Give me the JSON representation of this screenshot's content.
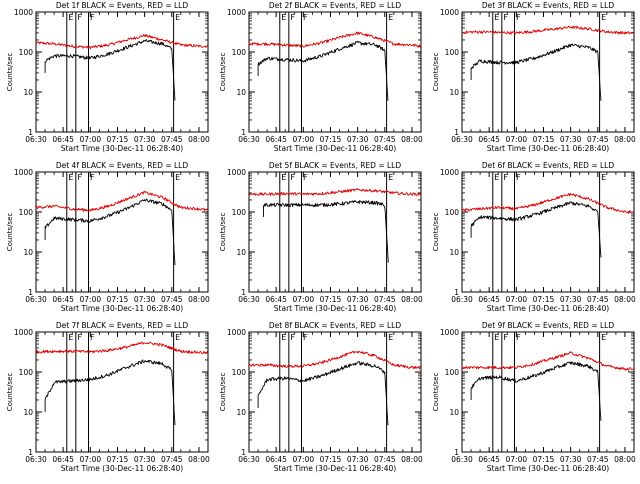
{
  "figure": {
    "rows": 3,
    "cols": 3,
    "colors": {
      "background": "#ffffff",
      "events": "#000000",
      "lld": "#e00000",
      "axes": "#000000"
    }
  },
  "chart_data": [
    {
      "type": "line",
      "title": "Det 1f BLACK = Events, RED = LLD",
      "xlabel": "Start Time (30-Dec-11 06:28:40)",
      "ylabel": "Counts/sec",
      "yscale": "log",
      "ylim": [
        1,
        1000
      ],
      "xlim": [
        "06:30",
        "08:05"
      ],
      "x_ticks": [
        "06:30",
        "06:45",
        "07:00",
        "07:15",
        "07:30",
        "07:45",
        "08:00"
      ],
      "y_ticks": [
        "1",
        "10",
        "100",
        "1000"
      ],
      "markers": [
        {
          "time": "06:47",
          "label": "E"
        },
        {
          "time": "06:52",
          "label": "F"
        },
        {
          "time": "06:59",
          "label": "F"
        },
        {
          "time": "07:46",
          "label": "E"
        }
      ],
      "series": [
        {
          "name": "LLD",
          "color": "#e00000",
          "x": [
            "06:30",
            "06:40",
            "06:50",
            "07:00",
            "07:10",
            "07:20",
            "07:30",
            "07:40",
            "07:50",
            "08:00",
            "08:05"
          ],
          "values": [
            170,
            160,
            140,
            130,
            150,
            200,
            260,
            200,
            150,
            140,
            140
          ]
        },
        {
          "name": "Events",
          "color": "#000000",
          "start": "06:35",
          "end": "07:47",
          "x": [
            "06:35",
            "06:40",
            "06:50",
            "07:00",
            "07:10",
            "07:20",
            "07:30",
            "07:40",
            "07:45",
            "07:47"
          ],
          "values": [
            60,
            80,
            80,
            70,
            90,
            130,
            190,
            160,
            120,
            4
          ]
        }
      ]
    },
    {
      "type": "line",
      "title": "Det 2f BLACK = Events, RED = LLD",
      "xlabel": "Start Time (30-Dec-11 06:28:40)",
      "ylabel": "Counts/sec",
      "yscale": "log",
      "ylim": [
        1,
        1000
      ],
      "xlim": [
        "06:30",
        "08:05"
      ],
      "x_ticks": [
        "06:30",
        "06:45",
        "07:00",
        "07:15",
        "07:30",
        "07:45",
        "08:00"
      ],
      "y_ticks": [
        "1",
        "10",
        "100",
        "1000"
      ],
      "markers": [
        {
          "time": "06:47",
          "label": "E"
        },
        {
          "time": "06:52",
          "label": "F"
        },
        {
          "time": "06:59",
          "label": "F"
        },
        {
          "time": "07:46",
          "label": "E"
        }
      ],
      "series": [
        {
          "name": "LLD",
          "color": "#e00000",
          "x": [
            "06:30",
            "06:40",
            "06:50",
            "07:00",
            "07:10",
            "07:20",
            "07:30",
            "07:40",
            "07:50",
            "08:00",
            "08:05"
          ],
          "values": [
            160,
            160,
            150,
            140,
            170,
            230,
            300,
            230,
            160,
            150,
            140
          ]
        },
        {
          "name": "Events",
          "color": "#000000",
          "start": "06:35",
          "end": "07:47",
          "x": [
            "06:35",
            "06:40",
            "06:50",
            "07:00",
            "07:10",
            "07:20",
            "07:30",
            "07:40",
            "07:45",
            "07:47"
          ],
          "values": [
            50,
            70,
            65,
            60,
            80,
            120,
            170,
            150,
            110,
            4
          ]
        }
      ]
    },
    {
      "type": "line",
      "title": "Det 3f BLACK = Events, RED = LLD",
      "xlabel": "Start Time (30-Dec-11 06:28:40)",
      "ylabel": "Counts/sec",
      "yscale": "log",
      "ylim": [
        1,
        1000
      ],
      "xlim": [
        "06:30",
        "08:05"
      ],
      "x_ticks": [
        "06:30",
        "06:45",
        "07:00",
        "07:15",
        "07:30",
        "07:45",
        "08:00"
      ],
      "y_ticks": [
        "1",
        "10",
        "100",
        "1000"
      ],
      "markers": [
        {
          "time": "06:47",
          "label": "E"
        },
        {
          "time": "06:52",
          "label": "F"
        },
        {
          "time": "06:59",
          "label": "F"
        },
        {
          "time": "07:46",
          "label": "E"
        }
      ],
      "series": [
        {
          "name": "LLD",
          "color": "#e00000",
          "x": [
            "06:30",
            "06:40",
            "06:50",
            "07:00",
            "07:10",
            "07:20",
            "07:30",
            "07:40",
            "07:50",
            "08:00",
            "08:05"
          ],
          "values": [
            310,
            320,
            310,
            300,
            330,
            370,
            420,
            380,
            320,
            300,
            300
          ]
        },
        {
          "name": "Events",
          "color": "#000000",
          "start": "06:35",
          "end": "07:47",
          "x": [
            "06:35",
            "06:40",
            "06:50",
            "07:00",
            "07:10",
            "07:20",
            "07:30",
            "07:40",
            "07:45",
            "07:47"
          ],
          "values": [
            40,
            60,
            55,
            55,
            70,
            100,
            150,
            130,
            100,
            4
          ]
        }
      ]
    },
    {
      "type": "line",
      "title": "Det 4f BLACK = Events, RED = LLD",
      "xlabel": "Start Time (30-Dec-11 06:28:40)",
      "ylabel": "Counts/sec",
      "yscale": "log",
      "ylim": [
        1,
        1000
      ],
      "xlim": [
        "06:30",
        "08:05"
      ],
      "x_ticks": [
        "06:30",
        "06:45",
        "07:00",
        "07:15",
        "07:30",
        "07:45",
        "08:00"
      ],
      "y_ticks": [
        "1",
        "10",
        "100",
        "1000"
      ],
      "markers": [
        {
          "time": "06:47",
          "label": "E"
        },
        {
          "time": "06:52",
          "label": "F"
        },
        {
          "time": "06:59",
          "label": "F"
        },
        {
          "time": "07:46",
          "label": "E"
        }
      ],
      "series": [
        {
          "name": "LLD",
          "color": "#e00000",
          "x": [
            "06:30",
            "06:40",
            "06:50",
            "07:00",
            "07:10",
            "07:20",
            "07:30",
            "07:40",
            "07:50",
            "08:00",
            "08:05"
          ],
          "values": [
            130,
            140,
            120,
            110,
            140,
            210,
            310,
            230,
            130,
            120,
            110
          ]
        },
        {
          "name": "Events",
          "color": "#000000",
          "start": "06:35",
          "end": "07:47",
          "x": [
            "06:35",
            "06:40",
            "06:50",
            "07:00",
            "07:10",
            "07:20",
            "07:30",
            "07:40",
            "07:45",
            "07:47"
          ],
          "values": [
            40,
            70,
            65,
            60,
            80,
            120,
            200,
            160,
            110,
            3
          ]
        }
      ]
    },
    {
      "type": "line",
      "title": "Det 5f BLACK = Events, RED = LLD",
      "xlabel": "Start Time (30-Dec-11 06:28:40)",
      "ylabel": "Counts/sec",
      "yscale": "log",
      "ylim": [
        1,
        1000
      ],
      "xlim": [
        "06:30",
        "08:05"
      ],
      "x_ticks": [
        "06:30",
        "06:45",
        "07:00",
        "07:15",
        "07:30",
        "07:45",
        "08:00"
      ],
      "y_ticks": [
        "1",
        "10",
        "100",
        "1000"
      ],
      "markers": [
        {
          "time": "06:47",
          "label": "E"
        },
        {
          "time": "06:52",
          "label": "F"
        },
        {
          "time": "06:59",
          "label": "F"
        },
        {
          "time": "07:46",
          "label": "E"
        }
      ],
      "series": [
        {
          "name": "LLD",
          "color": "#e00000",
          "x": [
            "06:30",
            "06:40",
            "06:50",
            "07:00",
            "07:10",
            "07:20",
            "07:30",
            "07:40",
            "07:50",
            "08:00",
            "08:05"
          ],
          "values": [
            280,
            280,
            290,
            280,
            290,
            320,
            360,
            340,
            300,
            280,
            280
          ]
        },
        {
          "name": "Events",
          "color": "#000000",
          "start": "06:38",
          "end": "07:47",
          "x": [
            "06:38",
            "06:40",
            "06:50",
            "07:00",
            "07:10",
            "07:20",
            "07:30",
            "07:40",
            "07:45",
            "07:47"
          ],
          "values": [
            150,
            150,
            150,
            150,
            150,
            160,
            180,
            170,
            150,
            5
          ]
        }
      ]
    },
    {
      "type": "line",
      "title": "Det 6f BLACK = Events, RED = LLD",
      "xlabel": "Start Time (30-Dec-11 06:28:40)",
      "ylabel": "Counts/sec",
      "yscale": "log",
      "ylim": [
        1,
        1000
      ],
      "xlim": [
        "06:30",
        "08:05"
      ],
      "x_ticks": [
        "06:30",
        "06:45",
        "07:00",
        "07:15",
        "07:30",
        "07:45",
        "08:00"
      ],
      "y_ticks": [
        "1",
        "10",
        "100",
        "1000"
      ],
      "markers": [
        {
          "time": "06:47",
          "label": "E"
        },
        {
          "time": "06:52",
          "label": "F"
        },
        {
          "time": "06:59",
          "label": "F"
        },
        {
          "time": "07:46",
          "label": "E"
        }
      ],
      "series": [
        {
          "name": "LLD",
          "color": "#e00000",
          "x": [
            "06:30",
            "06:40",
            "06:50",
            "07:00",
            "07:10",
            "07:20",
            "07:30",
            "07:40",
            "07:50",
            "08:00",
            "08:05"
          ],
          "values": [
            110,
            120,
            130,
            120,
            150,
            210,
            280,
            210,
            130,
            100,
            100
          ]
        },
        {
          "name": "Events",
          "color": "#000000",
          "start": "06:35",
          "end": "07:47",
          "x": [
            "06:35",
            "06:40",
            "06:50",
            "07:00",
            "07:10",
            "07:20",
            "07:30",
            "07:40",
            "07:45",
            "07:47"
          ],
          "values": [
            45,
            75,
            70,
            65,
            85,
            120,
            170,
            140,
            100,
            5
          ]
        }
      ]
    },
    {
      "type": "line",
      "title": "Det 7f BLACK = Events, RED = LLD",
      "xlabel": "Start Time (30-Dec-11 06:28:40)",
      "ylabel": "Counts/sec",
      "yscale": "log",
      "ylim": [
        1,
        1000
      ],
      "xlim": [
        "06:30",
        "08:05"
      ],
      "x_ticks": [
        "06:30",
        "06:45",
        "07:00",
        "07:15",
        "07:30",
        "07:45",
        "08:00"
      ],
      "y_ticks": [
        "1",
        "10",
        "100",
        "1000"
      ],
      "markers": [
        {
          "time": "06:47",
          "label": "E"
        },
        {
          "time": "06:52",
          "label": "F"
        },
        {
          "time": "06:59",
          "label": "F"
        },
        {
          "time": "07:46",
          "label": "E"
        }
      ],
      "series": [
        {
          "name": "LLD",
          "color": "#e00000",
          "x": [
            "06:30",
            "06:40",
            "06:50",
            "07:00",
            "07:10",
            "07:20",
            "07:30",
            "07:40",
            "07:50",
            "08:00",
            "08:05"
          ],
          "values": [
            320,
            330,
            330,
            320,
            350,
            420,
            550,
            470,
            330,
            310,
            300
          ]
        },
        {
          "name": "Events",
          "color": "#000000",
          "start": "06:35",
          "end": "07:47",
          "x": [
            "06:35",
            "06:40",
            "06:50",
            "07:00",
            "07:10",
            "07:20",
            "07:30",
            "07:40",
            "07:45",
            "07:47"
          ],
          "values": [
            20,
            55,
            60,
            65,
            85,
            130,
            190,
            160,
            110,
            3
          ]
        }
      ]
    },
    {
      "type": "line",
      "title": "Det 8f BLACK = Events, RED = LLD",
      "xlabel": "Start Time (30-Dec-11 06:28:40)",
      "ylabel": "Counts/sec",
      "yscale": "log",
      "ylim": [
        1,
        1000
      ],
      "xlim": [
        "06:30",
        "08:05"
      ],
      "x_ticks": [
        "06:30",
        "06:45",
        "07:00",
        "07:15",
        "07:30",
        "07:45",
        "08:00"
      ],
      "y_ticks": [
        "1",
        "10",
        "100",
        "1000"
      ],
      "markers": [
        {
          "time": "06:47",
          "label": "E"
        },
        {
          "time": "06:52",
          "label": "F"
        },
        {
          "time": "06:59",
          "label": "F"
        },
        {
          "time": "07:46",
          "label": "E"
        }
      ],
      "series": [
        {
          "name": "LLD",
          "color": "#e00000",
          "x": [
            "06:30",
            "06:40",
            "06:50",
            "07:00",
            "07:10",
            "07:20",
            "07:30",
            "07:40",
            "07:50",
            "08:00",
            "08:05"
          ],
          "values": [
            150,
            150,
            140,
            140,
            170,
            240,
            330,
            250,
            150,
            130,
            130
          ]
        },
        {
          "name": "Events",
          "color": "#000000",
          "start": "06:35",
          "end": "07:47",
          "x": [
            "06:35",
            "06:40",
            "06:50",
            "07:00",
            "07:10",
            "07:20",
            "07:30",
            "07:40",
            "07:45",
            "07:47"
          ],
          "values": [
            25,
            65,
            70,
            60,
            80,
            120,
            170,
            140,
            100,
            3
          ]
        }
      ]
    },
    {
      "type": "line",
      "title": "Det 9f BLACK = Events, RED = LLD",
      "xlabel": "Start Time (30-Dec-11 06:28:40)",
      "ylabel": "Counts/sec",
      "yscale": "log",
      "ylim": [
        1,
        1000
      ],
      "xlim": [
        "06:30",
        "08:05"
      ],
      "x_ticks": [
        "06:30",
        "06:45",
        "07:00",
        "07:15",
        "07:30",
        "07:45",
        "08:00"
      ],
      "y_ticks": [
        "1",
        "10",
        "100",
        "1000"
      ],
      "markers": [
        {
          "time": "06:47",
          "label": "E"
        },
        {
          "time": "06:52",
          "label": "F"
        },
        {
          "time": "06:59",
          "label": "F"
        },
        {
          "time": "07:46",
          "label": "E"
        }
      ],
      "series": [
        {
          "name": "LLD",
          "color": "#e00000",
          "x": [
            "06:30",
            "06:40",
            "06:50",
            "07:00",
            "07:10",
            "07:20",
            "07:30",
            "07:40",
            "07:50",
            "08:00",
            "08:05"
          ],
          "values": [
            130,
            130,
            130,
            130,
            160,
            220,
            300,
            220,
            140,
            120,
            120
          ]
        },
        {
          "name": "Events",
          "color": "#000000",
          "start": "06:35",
          "end": "07:47",
          "x": [
            "06:35",
            "06:40",
            "06:50",
            "07:00",
            "07:10",
            "07:20",
            "07:30",
            "07:40",
            "07:45",
            "07:47"
          ],
          "values": [
            40,
            70,
            75,
            60,
            80,
            120,
            170,
            140,
            100,
            4
          ]
        }
      ]
    }
  ]
}
